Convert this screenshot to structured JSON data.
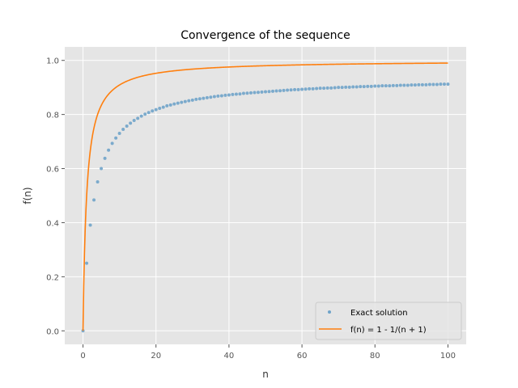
{
  "chart_data": {
    "type": "scatter",
    "title": "Convergence of the sequence",
    "xlabel": "n",
    "ylabel": "f(n)",
    "xlim": [
      -5,
      105
    ],
    "ylim": [
      -0.05,
      1.05
    ],
    "xticks": [
      0,
      20,
      40,
      60,
      80,
      100
    ],
    "yticks": [
      0.0,
      0.2,
      0.4,
      0.6,
      0.8,
      1.0
    ],
    "xtick_labels": [
      "0",
      "20",
      "40",
      "60",
      "80",
      "100"
    ],
    "ytick_labels": [
      "0.0",
      "0.2",
      "0.4",
      "0.6",
      "0.8",
      "1.0"
    ],
    "grid": true,
    "legend_position": "lower-right",
    "series": [
      {
        "name": "Exact solution",
        "kind": "scatter",
        "color": "#6fa3c9",
        "x": [
          0,
          1,
          2,
          3,
          4,
          5,
          6,
          7,
          8,
          9,
          10,
          11,
          12,
          13,
          14,
          15,
          16,
          17,
          18,
          19,
          20,
          21,
          22,
          23,
          24,
          25,
          26,
          27,
          28,
          29,
          30,
          31,
          32,
          33,
          34,
          35,
          36,
          37,
          38,
          39,
          40,
          41,
          42,
          43,
          44,
          45,
          46,
          47,
          48,
          49,
          50,
          51,
          52,
          53,
          54,
          55,
          56,
          57,
          58,
          59,
          60,
          61,
          62,
          63,
          64,
          65,
          66,
          67,
          68,
          69,
          70,
          71,
          72,
          73,
          74,
          75,
          76,
          77,
          78,
          79,
          80,
          81,
          82,
          83,
          84,
          85,
          86,
          87,
          88,
          89,
          90,
          91,
          92,
          93,
          94,
          95,
          96,
          97,
          98,
          99,
          100
        ],
        "y": [
          0.0,
          0.25,
          0.391,
          0.484,
          0.551,
          0.6,
          0.638,
          0.668,
          0.693,
          0.713,
          0.73,
          0.745,
          0.757,
          0.768,
          0.778,
          0.786,
          0.794,
          0.801,
          0.807,
          0.813,
          0.818,
          0.823,
          0.827,
          0.832,
          0.835,
          0.839,
          0.842,
          0.845,
          0.848,
          0.851,
          0.853,
          0.856,
          0.858,
          0.86,
          0.862,
          0.864,
          0.866,
          0.868,
          0.869,
          0.871,
          0.872,
          0.874,
          0.875,
          0.876,
          0.878,
          0.879,
          0.88,
          0.881,
          0.882,
          0.883,
          0.884,
          0.885,
          0.886,
          0.887,
          0.888,
          0.889,
          0.89,
          0.891,
          0.892,
          0.892,
          0.893,
          0.894,
          0.895,
          0.895,
          0.896,
          0.897,
          0.897,
          0.898,
          0.898,
          0.899,
          0.9,
          0.9,
          0.901,
          0.901,
          0.902,
          0.902,
          0.903,
          0.903,
          0.904,
          0.904,
          0.905,
          0.905,
          0.906,
          0.906,
          0.906,
          0.907,
          0.907,
          0.908,
          0.908,
          0.908,
          0.909,
          0.909,
          0.91,
          0.91,
          0.91,
          0.911,
          0.911,
          0.911,
          0.912,
          0.912,
          0.912
        ]
      },
      {
        "name": "f(n) = 1 - 1/(n + 1)",
        "kind": "line",
        "color": "#ff7f0e",
        "formula": "1 - 1/(n + 1)",
        "x_range": [
          0,
          100
        ]
      }
    ]
  }
}
